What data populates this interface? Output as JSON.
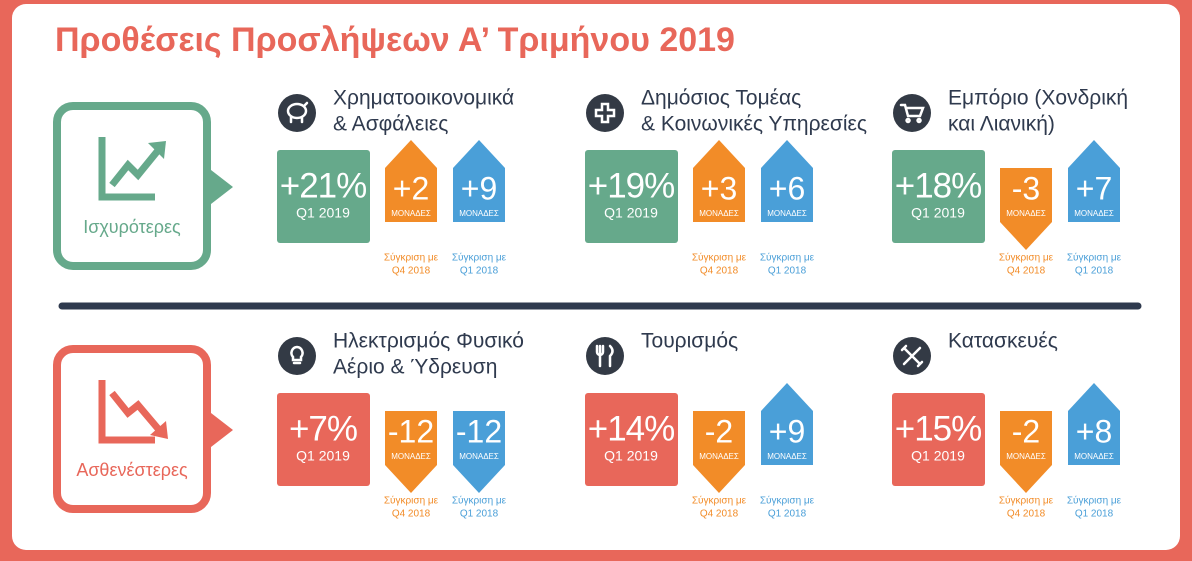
{
  "title": "Προθέσεις Προσλήψεων Α’ Τριμήνου 2019",
  "units_label": "ΜΟΝΑΔΕΣ",
  "compare_label": "Σύγκριση με",
  "groups": [
    {
      "label": "Ισχυρότερες",
      "sectors": [
        {
          "name_lines": [
            "Χρηματοοικονομικά",
            "& Ασφάλειες"
          ],
          "value": "+21%",
          "period": "Q1 2019",
          "vs_q4": {
            "change": "+2",
            "period": "Q4 2018"
          },
          "vs_q1": {
            "change": "+9",
            "period": "Q1 2018"
          }
        },
        {
          "name_lines": [
            "Δημόσιος Τομέας",
            "& Κοινωνικές Υπηρεσίες"
          ],
          "value": "+19%",
          "period": "Q1 2019",
          "vs_q4": {
            "change": "+3",
            "period": "Q4 2018"
          },
          "vs_q1": {
            "change": "+6",
            "period": "Q1 2018"
          }
        },
        {
          "name_lines": [
            "Εμπόριο (Χονδρική",
            "και Λιανική)"
          ],
          "value": "+18%",
          "period": "Q1 2019",
          "vs_q4": {
            "change": "-3",
            "period": "Q4 2018"
          },
          "vs_q1": {
            "change": "+7",
            "period": "Q1 2018"
          }
        }
      ]
    },
    {
      "label": "Ασθενέστερες",
      "sectors": [
        {
          "name_lines": [
            "Ηλεκτρισμός Φυσικό",
            "Αέριο & Ύδρευση"
          ],
          "value": "+7%",
          "period": "Q1 2019",
          "vs_q4": {
            "change": "-12",
            "period": "Q4 2018"
          },
          "vs_q1": {
            "change": "-12",
            "period": "Q1 2018"
          }
        },
        {
          "name_lines": [
            "Τουρισμός"
          ],
          "value": "+14%",
          "period": "Q1 2019",
          "vs_q4": {
            "change": "-2",
            "period": "Q4 2018"
          },
          "vs_q1": {
            "change": "+9",
            "period": "Q1 2018"
          }
        },
        {
          "name_lines": [
            "Κατασκευές"
          ],
          "value": "+15%",
          "period": "Q1 2019",
          "vs_q4": {
            "change": "-2",
            "period": "Q4 2018"
          },
          "vs_q1": {
            "change": "+8",
            "period": "Q1 2018"
          }
        }
      ]
    }
  ]
}
